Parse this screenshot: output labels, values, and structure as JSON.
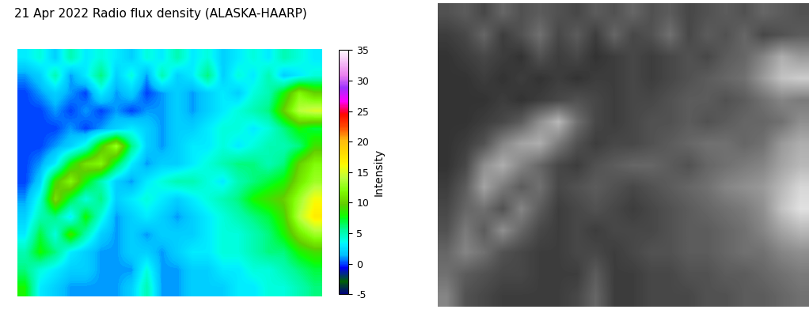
{
  "chart_data": [
    {
      "type": "heatmap",
      "title": "21 Apr 2022 Radio flux density (ALASKA-HAARP)",
      "tick_labels": false,
      "color": "gist_ncar",
      "cells": [
        [
          3,
          4,
          2,
          5,
          3,
          4,
          3,
          2,
          4,
          3,
          5,
          3,
          4,
          2,
          3,
          4,
          3,
          5,
          4,
          3
        ],
        [
          1,
          2,
          5,
          1,
          3,
          6,
          2,
          4,
          1,
          5,
          2,
          3,
          6,
          2,
          4,
          3,
          5,
          2,
          3,
          4
        ],
        [
          0,
          1,
          2,
          1,
          0,
          3,
          1,
          2,
          0,
          1,
          2,
          1,
          2,
          3,
          2,
          4,
          5,
          8,
          12,
          10
        ],
        [
          0,
          0,
          1,
          0,
          1,
          0,
          1,
          0,
          1,
          1,
          2,
          1,
          2,
          3,
          4,
          5,
          6,
          10,
          14,
          15
        ],
        [
          0,
          0,
          0,
          1,
          0,
          1,
          2,
          3,
          2,
          1,
          2,
          2,
          3,
          4,
          4,
          3,
          4,
          6,
          8,
          7
        ],
        [
          0,
          0,
          1,
          2,
          4,
          9,
          13,
          6,
          2,
          1,
          2,
          3,
          3,
          4,
          3,
          4,
          5,
          5,
          6,
          9
        ],
        [
          0,
          1,
          3,
          8,
          11,
          12,
          7,
          3,
          1,
          2,
          2,
          3,
          4,
          5,
          6,
          6,
          5,
          6,
          10,
          12
        ],
        [
          0,
          2,
          9,
          12,
          8,
          5,
          2,
          1,
          3,
          4,
          5,
          5,
          4,
          3,
          5,
          6,
          7,
          8,
          11,
          13
        ],
        [
          1,
          4,
          11,
          7,
          4,
          6,
          2,
          3,
          4,
          3,
          2,
          3,
          4,
          5,
          6,
          8,
          9,
          10,
          13,
          16
        ],
        [
          2,
          5,
          6,
          3,
          8,
          4,
          1,
          2,
          3,
          2,
          1,
          2,
          3,
          4,
          5,
          6,
          7,
          9,
          14,
          17
        ],
        [
          3,
          7,
          4,
          9,
          5,
          2,
          1,
          2,
          1,
          2,
          2,
          2,
          3,
          4,
          4,
          5,
          6,
          8,
          11,
          13
        ],
        [
          5,
          8,
          6,
          3,
          2,
          1,
          1,
          2,
          2,
          1,
          2,
          3,
          3,
          4,
          4,
          5,
          6,
          6,
          8,
          9
        ],
        [
          6,
          4,
          3,
          2,
          2,
          1,
          1,
          1,
          4,
          1,
          1,
          2,
          2,
          3,
          3,
          4,
          4,
          5,
          6,
          7
        ],
        [
          8,
          3,
          2,
          1,
          1,
          1,
          1,
          2,
          5,
          1,
          1,
          2,
          2,
          2,
          3,
          3,
          4,
          4,
          5,
          6
        ]
      ],
      "colorbar": {
        "label": "Intensity",
        "range": [
          -5,
          35
        ],
        "ticks": [
          -5,
          0,
          5,
          10,
          15,
          20,
          25,
          30,
          35
        ]
      }
    },
    {
      "type": "heatmap",
      "tick_labels": false,
      "color": "gray",
      "cells": [
        [
          3,
          4,
          2,
          5,
          3,
          4,
          3,
          2,
          4,
          3,
          5,
          3,
          4,
          2,
          3,
          4,
          3,
          5,
          4,
          3
        ],
        [
          1,
          2,
          5,
          1,
          3,
          6,
          2,
          4,
          1,
          5,
          2,
          3,
          6,
          2,
          4,
          3,
          5,
          2,
          3,
          4
        ],
        [
          0,
          1,
          2,
          1,
          0,
          3,
          1,
          2,
          0,
          1,
          2,
          1,
          2,
          3,
          2,
          4,
          5,
          8,
          12,
          10
        ],
        [
          0,
          0,
          1,
          0,
          1,
          0,
          1,
          0,
          1,
          1,
          2,
          1,
          2,
          3,
          4,
          5,
          6,
          10,
          14,
          15
        ],
        [
          0,
          0,
          0,
          1,
          0,
          1,
          2,
          3,
          2,
          1,
          2,
          2,
          3,
          4,
          4,
          3,
          4,
          6,
          8,
          7
        ],
        [
          0,
          0,
          1,
          2,
          4,
          9,
          13,
          6,
          2,
          1,
          2,
          3,
          3,
          4,
          3,
          4,
          5,
          5,
          6,
          9
        ],
        [
          0,
          1,
          3,
          8,
          11,
          12,
          7,
          3,
          1,
          2,
          2,
          3,
          4,
          5,
          6,
          6,
          5,
          6,
          10,
          12
        ],
        [
          0,
          2,
          9,
          12,
          8,
          5,
          2,
          1,
          3,
          4,
          5,
          5,
          4,
          3,
          5,
          6,
          7,
          8,
          11,
          13
        ],
        [
          1,
          4,
          11,
          7,
          4,
          6,
          2,
          3,
          4,
          3,
          2,
          3,
          4,
          5,
          6,
          8,
          9,
          10,
          13,
          16
        ],
        [
          2,
          5,
          6,
          3,
          8,
          4,
          1,
          2,
          3,
          2,
          1,
          2,
          3,
          4,
          5,
          6,
          7,
          9,
          14,
          17
        ],
        [
          3,
          7,
          4,
          9,
          5,
          2,
          1,
          2,
          1,
          2,
          2,
          2,
          3,
          4,
          4,
          5,
          6,
          8,
          11,
          13
        ],
        [
          5,
          8,
          6,
          3,
          2,
          1,
          1,
          2,
          2,
          1,
          2,
          3,
          3,
          4,
          4,
          5,
          6,
          6,
          8,
          9
        ],
        [
          6,
          4,
          3,
          2,
          2,
          1,
          1,
          1,
          4,
          1,
          1,
          2,
          2,
          3,
          3,
          4,
          4,
          5,
          6,
          7
        ],
        [
          8,
          3,
          2,
          1,
          1,
          1,
          1,
          2,
          5,
          1,
          1,
          2,
          2,
          2,
          3,
          3,
          4,
          4,
          5,
          6
        ]
      ],
      "value_range": [
        -5,
        20
      ]
    }
  ]
}
